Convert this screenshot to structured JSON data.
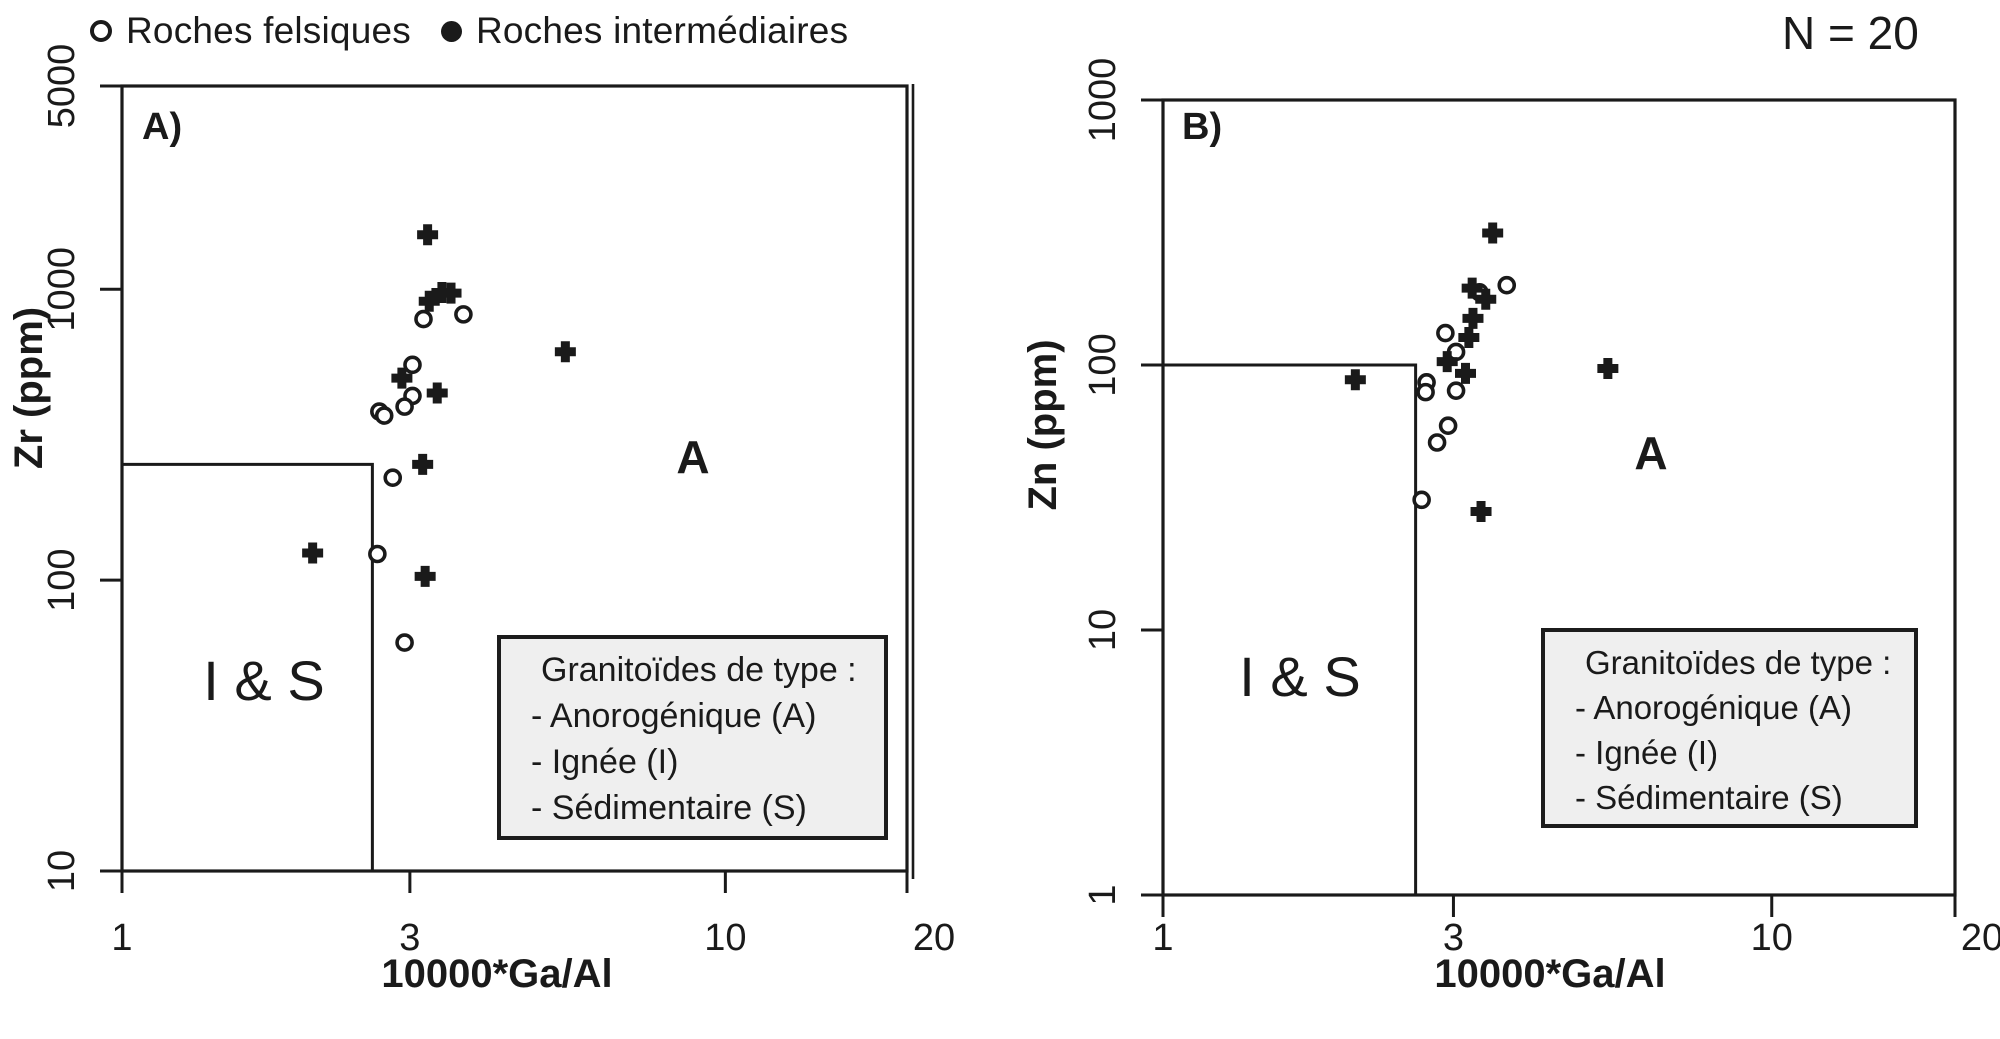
{
  "header": {
    "sample_count": "N = 20"
  },
  "marker_legend": {
    "felsic_label": "Roches felsiques",
    "intermediate_label": "Roches intermédiaires"
  },
  "type_legend": {
    "title": "Granitoïdes de type :",
    "item_anorogenic": "- Anorogénique (A)",
    "item_igneous": "- Ignée (I)",
    "item_sedimentary": "- Sédimentaire (S)"
  },
  "chart_data": [
    {
      "id": "A",
      "type": "scatter",
      "panel_label": "A)",
      "xlabel": "10000*Ga/Al",
      "ylabel": "Zr (ppm)",
      "log_x": true,
      "log_y": true,
      "xlim": [
        1,
        20
      ],
      "ylim": [
        10,
        5000
      ],
      "x_ticks": [
        "1",
        "3",
        "10",
        "20"
      ],
      "y_ticks": [
        "10",
        "100",
        "1000",
        "5000"
      ],
      "grid": false,
      "field_a_label": "A",
      "field_is_label": "I & S",
      "is_box": {
        "x_max": 2.6,
        "y_max": 250
      },
      "series": [
        {
          "name": "Roches felsiques",
          "marker": "open-circle",
          "points": [
            [
              2.81,
              225
            ],
            [
              2.65,
              123
            ],
            [
              2.94,
              61
            ],
            [
              3.16,
              790
            ],
            [
              3.68,
              820
            ],
            [
              3.03,
              550
            ],
            [
              3.03,
              430
            ],
            [
              2.94,
              395
            ],
            [
              2.67,
              380
            ],
            [
              2.72,
              368
            ]
          ]
        },
        {
          "name": "Roches intermédiaires",
          "marker": "filled-plus",
          "points": [
            [
              3.21,
              1540
            ],
            [
              3.23,
              910
            ],
            [
              3.39,
              975
            ],
            [
              3.51,
              970
            ],
            [
              5.43,
              610
            ],
            [
              2.91,
              495
            ],
            [
              3.33,
              440
            ],
            [
              3.15,
              250
            ],
            [
              3.18,
              103
            ],
            [
              2.07,
              124
            ]
          ]
        }
      ]
    },
    {
      "id": "B",
      "type": "scatter",
      "panel_label": "B)",
      "xlabel": "10000*Ga/Al",
      "ylabel": "Zn (ppm)",
      "log_x": true,
      "log_y": true,
      "xlim": [
        1,
        20
      ],
      "ylim": [
        1,
        1000
      ],
      "x_ticks": [
        "1",
        "3",
        "10",
        "20"
      ],
      "y_ticks": [
        "1",
        "10",
        "100",
        "1000"
      ],
      "grid": false,
      "field_a_label": "A",
      "field_is_label": "I & S",
      "is_box": {
        "x_max": 2.6,
        "y_max": 100
      },
      "series": [
        {
          "name": "Roches felsiques",
          "marker": "open-circle",
          "points": [
            [
              3.67,
              200
            ],
            [
              3.31,
              188
            ],
            [
              2.91,
              132
            ],
            [
              3.03,
              112
            ],
            [
              2.71,
              86
            ],
            [
              2.7,
              79
            ],
            [
              3.03,
              80
            ],
            [
              2.94,
              59
            ],
            [
              2.82,
              51
            ],
            [
              2.66,
              31
            ]
          ]
        },
        {
          "name": "Roches intermédiaires",
          "marker": "filled-plus",
          "points": [
            [
              3.48,
              315
            ],
            [
              3.22,
              195
            ],
            [
              3.39,
              177
            ],
            [
              3.23,
              150
            ],
            [
              3.18,
              127
            ],
            [
              2.93,
              103
            ],
            [
              3.14,
              93
            ],
            [
              2.07,
              88
            ],
            [
              5.38,
              97
            ],
            [
              3.33,
              28
            ]
          ]
        }
      ]
    }
  ]
}
